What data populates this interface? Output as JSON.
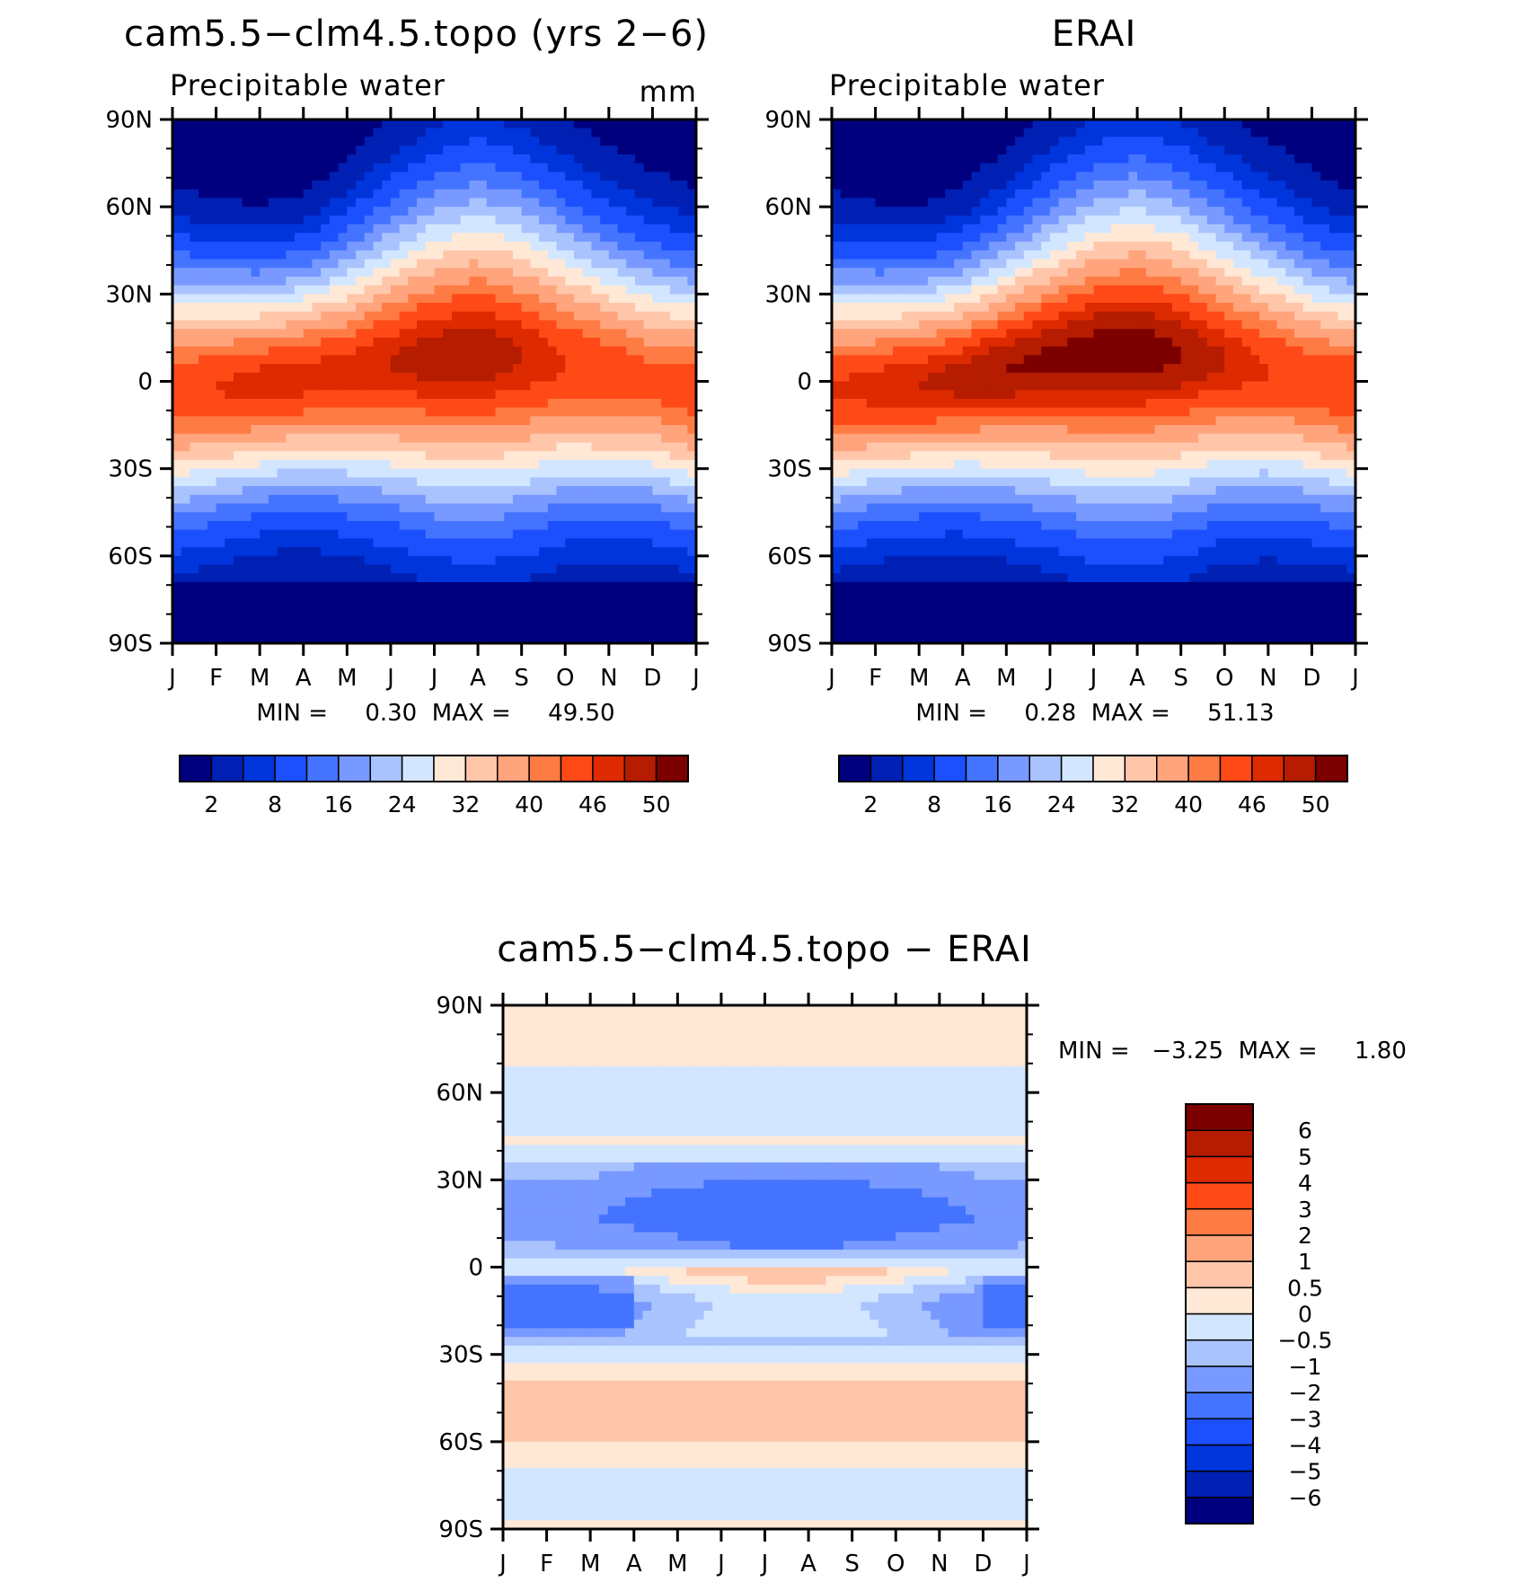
{
  "chart_data": [
    {
      "type": "heatmap",
      "title": "cam5.5−clm4.5.topo (yrs 2−6)",
      "subtitle": "Precipitable water",
      "units": "mm",
      "stats": "MIN =     0.30  MAX =     49.50",
      "min": 0.3,
      "max": 49.5,
      "x_ticks": [
        "J",
        "F",
        "M",
        "A",
        "M",
        "J",
        "J",
        "A",
        "S",
        "O",
        "N",
        "D",
        "J"
      ],
      "y_ticks": [
        "90N",
        "60N",
        "30N",
        "0",
        "30S",
        "60S",
        "90S"
      ],
      "ylim": [
        -90,
        90
      ],
      "colorbar_levels": [
        "2",
        "8",
        "16",
        "24",
        "32",
        "40",
        "46",
        "50"
      ],
      "colorbar_colors": [
        "#00007f",
        "#0020b4",
        "#0035dc",
        "#1c50ff",
        "#4474ff",
        "#7899ff",
        "#a9c3ff",
        "#d3e6ff",
        "#ffe8d6",
        "#ffc6aa",
        "#ffa47c",
        "#ff7b44",
        "#ff4a17",
        "#de2a00",
        "#b51c00",
        "#7d0000"
      ],
      "peak_lat_by_month": [
        -3,
        -2,
        -1,
        1,
        3,
        6,
        8,
        9,
        8,
        6,
        3,
        0,
        -3
      ],
      "half_width_by_month": [
        42,
        40,
        38,
        38,
        42,
        47,
        52,
        54,
        52,
        47,
        44,
        42,
        42
      ],
      "peak_value_by_month": [
        45,
        46,
        47,
        47,
        47,
        48,
        49,
        49.5,
        48,
        46,
        45,
        44,
        45
      ]
    },
    {
      "type": "heatmap",
      "title": "ERAI",
      "subtitle": "Precipitable water",
      "units": "",
      "stats": "MIN =     0.28  MAX =     51.13",
      "min": 0.28,
      "max": 51.13,
      "x_ticks": [
        "J",
        "F",
        "M",
        "A",
        "M",
        "J",
        "J",
        "A",
        "S",
        "O",
        "N",
        "D",
        "J"
      ],
      "y_ticks": [
        "90N",
        "60N",
        "30N",
        "0",
        "30S",
        "60S",
        "90S"
      ],
      "ylim": [
        -90,
        90
      ],
      "colorbar_levels": [
        "2",
        "8",
        "16",
        "24",
        "32",
        "40",
        "46",
        "50"
      ],
      "colorbar_colors": [
        "#00007f",
        "#0020b4",
        "#0035dc",
        "#1c50ff",
        "#4474ff",
        "#7899ff",
        "#a9c3ff",
        "#d3e6ff",
        "#ffe8d6",
        "#ffc6aa",
        "#ffa47c",
        "#ff7b44",
        "#ff4a17",
        "#de2a00",
        "#b51c00",
        "#7d0000"
      ],
      "peak_lat_by_month": [
        -3,
        -2,
        -1,
        1,
        4,
        7,
        9,
        10,
        9,
        7,
        4,
        0,
        -3
      ],
      "half_width_by_month": [
        41,
        39,
        38,
        39,
        43,
        48,
        53,
        55,
        52,
        47,
        44,
        42,
        41
      ],
      "peak_value_by_month": [
        46,
        47,
        48,
        49,
        50,
        50.5,
        51,
        51.1,
        50,
        48,
        46,
        45,
        46
      ]
    },
    {
      "type": "heatmap",
      "title": "cam5.5−clm4.5.topo − ERAI",
      "stats": "MIN =   −3.25  MAX =     1.80",
      "min": -3.25,
      "max": 1.8,
      "x_ticks": [
        "J",
        "F",
        "M",
        "A",
        "M",
        "J",
        "J",
        "A",
        "S",
        "O",
        "N",
        "D",
        "J"
      ],
      "y_ticks": [
        "90N",
        "60N",
        "30N",
        "0",
        "30S",
        "60S",
        "90S"
      ],
      "ylim": [
        -90,
        90
      ],
      "colorbar_levels": [
        "−6",
        "−5",
        "−4",
        "−3",
        "−2",
        "−1",
        "−0.5",
        "0",
        "0.5",
        "1",
        "2",
        "3",
        "4",
        "5",
        "6"
      ],
      "colorbar_colors": [
        "#00007f",
        "#0020b4",
        "#0035dc",
        "#1c50ff",
        "#4474ff",
        "#7899ff",
        "#a9c3ff",
        "#d3e6ff",
        "#ffe8d6",
        "#ffc6aa",
        "#ffa47c",
        "#ff7b44",
        "#ff4a17",
        "#de2a00",
        "#b51c00",
        "#7d0000"
      ],
      "lat_profile": [
        [
          90,
          0.2
        ],
        [
          75,
          0.2
        ],
        [
          62,
          -0.2
        ],
        [
          52,
          -0.3
        ],
        [
          42,
          0.1
        ],
        [
          36,
          -0.4
        ],
        [
          30,
          -0.9
        ],
        [
          24,
          -1.6
        ],
        [
          16,
          -1.8
        ],
        [
          10,
          -1.2
        ],
        [
          4,
          -0.6
        ],
        [
          -2,
          0.3
        ],
        [
          -6,
          -0.4
        ],
        [
          -12,
          -1.0
        ],
        [
          -20,
          -0.8
        ],
        [
          -26,
          -0.7
        ],
        [
          -32,
          -0.2
        ],
        [
          -40,
          0.6
        ],
        [
          -48,
          0.8
        ],
        [
          -56,
          0.6
        ],
        [
          -64,
          0.3
        ],
        [
          -72,
          -0.2
        ],
        [
          -82,
          -0.3
        ],
        [
          -90,
          0.2
        ]
      ]
    }
  ]
}
